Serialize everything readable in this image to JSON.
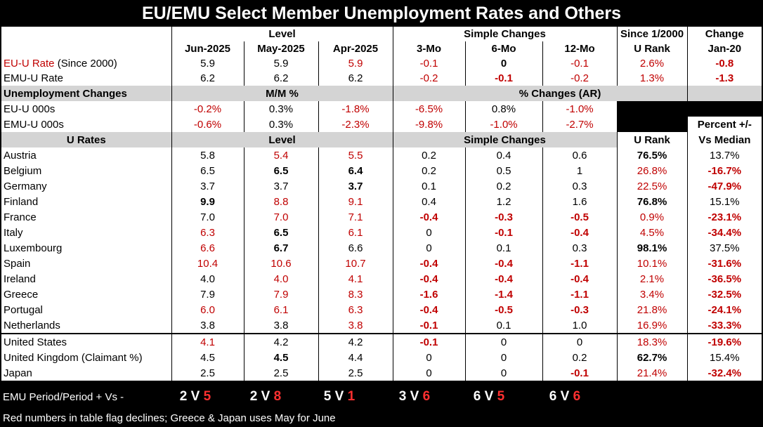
{
  "title": "EU/EMU Select Member Unemployment Rates and Others",
  "headers": {
    "level": "Level",
    "simple_changes": "Simple Changes",
    "since_2000": "Since 1/2000",
    "change": "Change",
    "u_rank": "U Rank",
    "jan20": "Jan-20",
    "jun": "Jun-2025",
    "may": "May-2025",
    "apr": "Apr-2025",
    "m3": "3-Mo",
    "m6": "6-Mo",
    "m12": "12-Mo",
    "unemp_changes": "Unemployment Changes",
    "mm_pct": "M/M %",
    "pct_changes_ar": "% Changes (AR)",
    "u_rates": "U Rates",
    "level2": "Level",
    "simple_changes2": "Simple Changes",
    "u_rank2": "U Rank",
    "pct_vs_median_1": "Percent +/-",
    "pct_vs_median_2": "Vs Median"
  },
  "agg_rows": [
    {
      "label_red": "EU-U Rate",
      "label_rest": " (Since 2000)",
      "v": [
        "5.9",
        "5.9",
        "5.9",
        "-0.1",
        "0",
        "-0.1",
        "2.6%",
        "-0.8"
      ]
    },
    {
      "label_red": "",
      "label_rest": "EMU-U Rate",
      "v": [
        "6.2",
        "6.2",
        "6.2",
        "-0.2",
        "-0.1",
        "-0.2",
        "1.3%",
        "-1.3"
      ]
    }
  ],
  "unemp_rows": [
    {
      "label": "EU-U 000s",
      "v": [
        "-0.2%",
        "0.3%",
        "-1.8%",
        "-6.5%",
        "0.8%",
        "-1.0%"
      ]
    },
    {
      "label": "EMU-U 000s",
      "v": [
        "-0.6%",
        "0.3%",
        "-2.3%",
        "-9.8%",
        "-1.0%",
        "-2.7%"
      ]
    }
  ],
  "country_rows": [
    {
      "label": "Austria",
      "v": [
        "5.8",
        "5.4",
        "5.5",
        "0.2",
        "0.4",
        "0.6",
        "76.5%",
        "13.7%"
      ]
    },
    {
      "label": "Belgium",
      "v": [
        "6.5",
        "6.5",
        "6.4",
        "0.2",
        "0.5",
        "1",
        "26.8%",
        "-16.7%"
      ]
    },
    {
      "label": "Germany",
      "v": [
        "3.7",
        "3.7",
        "3.7",
        "0.1",
        "0.2",
        "0.3",
        "22.5%",
        "-47.9%"
      ]
    },
    {
      "label": "Finland",
      "v": [
        "9.9",
        "8.8",
        "9.1",
        "0.4",
        "1.2",
        "1.6",
        "76.8%",
        "15.1%"
      ]
    },
    {
      "label": "France",
      "v": [
        "7.0",
        "7.0",
        "7.1",
        "-0.4",
        "-0.3",
        "-0.5",
        "0.9%",
        "-23.1%"
      ]
    },
    {
      "label": "Italy",
      "v": [
        "6.3",
        "6.5",
        "6.1",
        "0",
        "-0.1",
        "-0.4",
        "4.5%",
        "-34.4%"
      ]
    },
    {
      "label": "Luxembourg",
      "v": [
        "6.6",
        "6.7",
        "6.6",
        "0",
        "0.1",
        "0.3",
        "98.1%",
        "37.5%"
      ]
    },
    {
      "label": "Spain",
      "v": [
        "10.4",
        "10.6",
        "10.7",
        "-0.4",
        "-0.4",
        "-1.1",
        "10.1%",
        "-31.6%"
      ]
    },
    {
      "label": "Ireland",
      "v": [
        "4.0",
        "4.0",
        "4.1",
        "-0.4",
        "-0.4",
        "-0.4",
        "2.1%",
        "-36.5%"
      ]
    },
    {
      "label": "Greece",
      "v": [
        "7.9",
        "7.9",
        "8.3",
        "-1.6",
        "-1.4",
        "-1.1",
        "3.4%",
        "-32.5%"
      ]
    },
    {
      "label": "Portugal",
      "v": [
        "6.0",
        "6.1",
        "6.3",
        "-0.4",
        "-0.5",
        "-0.3",
        "21.8%",
        "-24.1%"
      ]
    },
    {
      "label": "Netherlands",
      "v": [
        "3.8",
        "3.8",
        "3.8",
        "-0.1",
        "0.1",
        "1.0",
        "16.9%",
        "-33.3%"
      ]
    }
  ],
  "other_rows": [
    {
      "label": "United States",
      "v": [
        "4.1",
        "4.2",
        "4.2",
        "-0.1",
        "0",
        "0",
        "18.3%",
        "-19.6%"
      ]
    },
    {
      "label": "United Kingdom (Claimant %)",
      "v": [
        "4.5",
        "4.5",
        "4.4",
        "0",
        "0",
        "0.2",
        "62.7%",
        "15.4%"
      ]
    },
    {
      "label": "Japan",
      "v": [
        "2.5",
        "2.5",
        "2.5",
        "0",
        "0",
        "-0.1",
        "21.4%",
        "-32.4%"
      ]
    }
  ],
  "footer": {
    "label": "EMU Period/Period + Vs -",
    "note": "Red numbers in table flag declines; Greece & Japan uses May for June",
    "vs": [
      {
        "a": "2",
        "v": "V",
        "b": "5"
      },
      {
        "a": "2",
        "v": "V",
        "b": "8"
      },
      {
        "a": "5",
        "v": "V",
        "b": "1"
      },
      {
        "a": "3",
        "v": "V",
        "b": "6"
      },
      {
        "a": "6",
        "v": "V",
        "b": "5"
      },
      {
        "a": "6",
        "v": "V",
        "b": "6"
      }
    ]
  },
  "colors": {
    "red": "#c00000",
    "header_gray": "#d4d4d4",
    "background": "#000000"
  }
}
